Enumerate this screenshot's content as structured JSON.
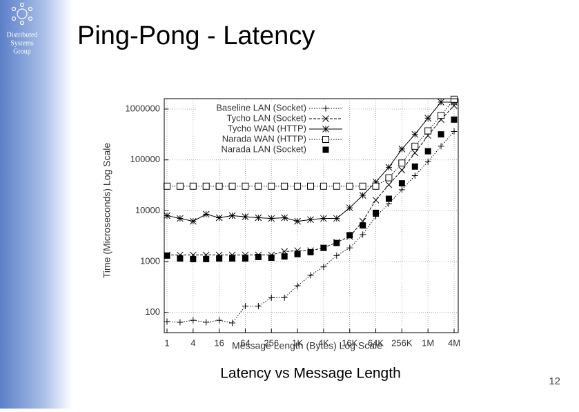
{
  "slide": {
    "logo": [
      "Distributed",
      "Systems",
      "Group"
    ],
    "title": "Ping-Pong - Latency",
    "caption": "Latency vs Message Length",
    "page_number": "12"
  },
  "chart_data": {
    "type": "line",
    "x_label": "Message Length (Bytes) Log Scale",
    "y_label": "Time (Microseconds) Log Scale",
    "categories": [
      "1",
      null,
      "4",
      null,
      "16",
      null,
      "64",
      null,
      "256",
      null,
      "1K",
      null,
      "4K",
      null,
      "16K",
      null,
      "64K",
      null,
      "256K",
      null,
      "1M",
      null,
      "4M"
    ],
    "ylim": [
      40,
      1600000
    ],
    "yscale": "log",
    "yticks": [
      100,
      1000,
      10000,
      100000,
      1000000
    ],
    "grid": true,
    "legend": "top-left",
    "series": [
      {
        "name": "Baseline LAN (Socket)",
        "color": "#000000",
        "line": "dotted",
        "marker": "plus",
        "values": [
          66,
          64,
          70,
          64,
          70,
          62,
          133,
          133,
          195,
          195,
          334,
          538,
          788,
          1310,
          1860,
          3400,
          7760,
          13700,
          25900,
          49000,
          92500,
          186000,
          362000
        ]
      },
      {
        "name": "Tycho LAN (Socket)",
        "color": "#000000",
        "line": "dashed",
        "marker": "cross",
        "values": [
          1350,
          1350,
          1350,
          1350,
          1350,
          1350,
          1350,
          1350,
          1350,
          1580,
          1640,
          1640,
          1860,
          2390,
          3100,
          6210,
          16200,
          32500,
          63000,
          138000,
          301000,
          621000,
          1170000
        ]
      },
      {
        "name": "Tycho WAN (HTTP)",
        "color": "#000000",
        "line": "solid",
        "marker": "star",
        "values": [
          8000,
          7050,
          6210,
          8530,
          7280,
          8000,
          7600,
          7280,
          7050,
          7280,
          6210,
          6700,
          7050,
          7050,
          11400,
          20100,
          36800,
          71600,
          164000,
          318000,
          662000,
          1370000,
          1370000
        ]
      },
      {
        "name": "Narada WAN (HTTP)",
        "color": "#000000",
        "line": "dotted",
        "marker": "square-open",
        "values": [
          30400,
          30400,
          30400,
          30400,
          30400,
          30400,
          30400,
          30400,
          30400,
          30400,
          30400,
          30400,
          30400,
          30400,
          30400,
          30400,
          30400,
          44500,
          86700,
          186000,
          373000,
          751000,
          1560000
        ]
      },
      {
        "name": "Narada LAN (Socket)",
        "color": "#000000",
        "line": "none",
        "marker": "square-filled",
        "values": [
          1310,
          1150,
          1120,
          1120,
          1150,
          1150,
          1150,
          1230,
          1190,
          1260,
          1400,
          1530,
          1860,
          2320,
          3300,
          5140,
          9100,
          17200,
          34600,
          74000,
          148000,
          318000,
          621000
        ]
      }
    ]
  }
}
